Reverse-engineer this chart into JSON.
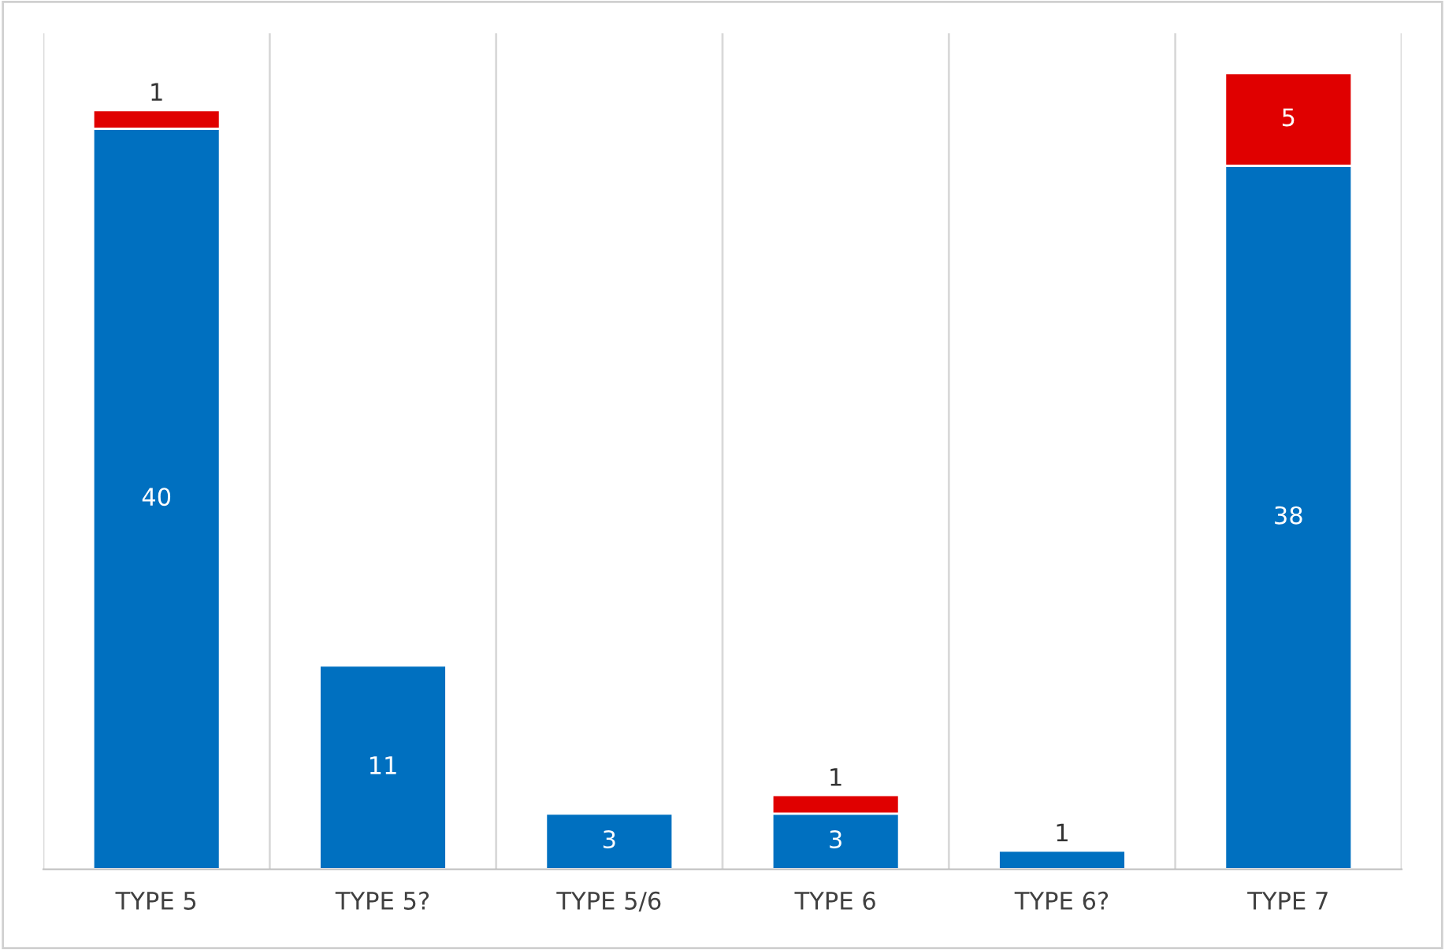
{
  "chart_data": {
    "type": "bar",
    "stacked": true,
    "categories": [
      "TYPE 5",
      "TYPE 5?",
      "TYPE 5/6",
      "TYPE 6",
      "TYPE 6?",
      "TYPE 7"
    ],
    "series": [
      {
        "color": "#0070c0",
        "values": [
          40,
          11,
          3,
          3,
          1,
          38
        ]
      },
      {
        "color": "#e00000",
        "values": [
          1,
          null,
          null,
          1,
          null,
          5
        ]
      }
    ],
    "data_labels": true,
    "grid": "x",
    "legend": false,
    "tick_labels": "x"
  }
}
